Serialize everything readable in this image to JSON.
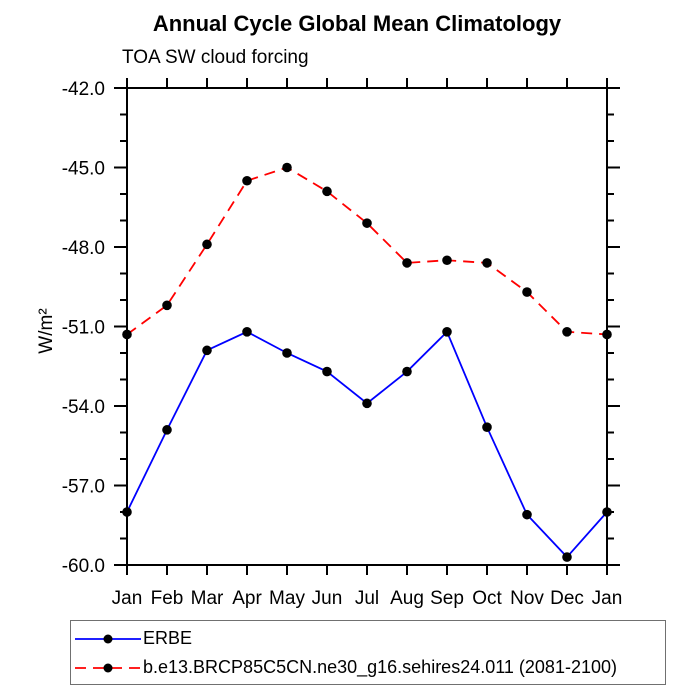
{
  "page": {
    "background": "#ffffff",
    "text_color": "#000000"
  },
  "chart_data": {
    "type": "line",
    "title": "Annual Cycle Global Mean Climatology",
    "subtitle": "TOA SW cloud forcing",
    "xlabel": "",
    "ylabel": "W/m²",
    "categories": [
      "Jan",
      "Feb",
      "Mar",
      "Apr",
      "May",
      "Jun",
      "Jul",
      "Aug",
      "Sep",
      "Oct",
      "Nov",
      "Dec",
      "Jan"
    ],
    "ylim": [
      -60,
      -42
    ],
    "ytick_major_interval": 3,
    "ytick_minor_interval": 1,
    "ytick_labels": [
      "-42.0",
      "-45.0",
      "-48.0",
      "-51.0",
      "-54.0",
      "-57.0",
      "-60.0"
    ],
    "grid": false,
    "frame_color": "#000000",
    "legend_position": "bottom",
    "series": [
      {
        "name": "ERBE",
        "color": "#0000ff",
        "line_style": "solid",
        "marker": "filled-circle",
        "marker_color": "#000000",
        "values": [
          -58.0,
          -54.9,
          -51.9,
          -51.2,
          -52.0,
          -52.7,
          -53.9,
          -52.7,
          -51.2,
          -54.8,
          -58.1,
          -59.7,
          -58.0
        ]
      },
      {
        "name": "b.e13.BRCP85C5CN.ne30_g16.sehires24.011 (2081-2100)",
        "color": "#ff0000",
        "line_style": "dashed",
        "marker": "filled-circle",
        "marker_color": "#000000",
        "values": [
          -51.3,
          -50.2,
          -47.9,
          -45.5,
          -45.0,
          -45.9,
          -47.1,
          -48.6,
          -48.5,
          -48.6,
          -49.7,
          -51.2,
          -51.3
        ]
      }
    ]
  }
}
